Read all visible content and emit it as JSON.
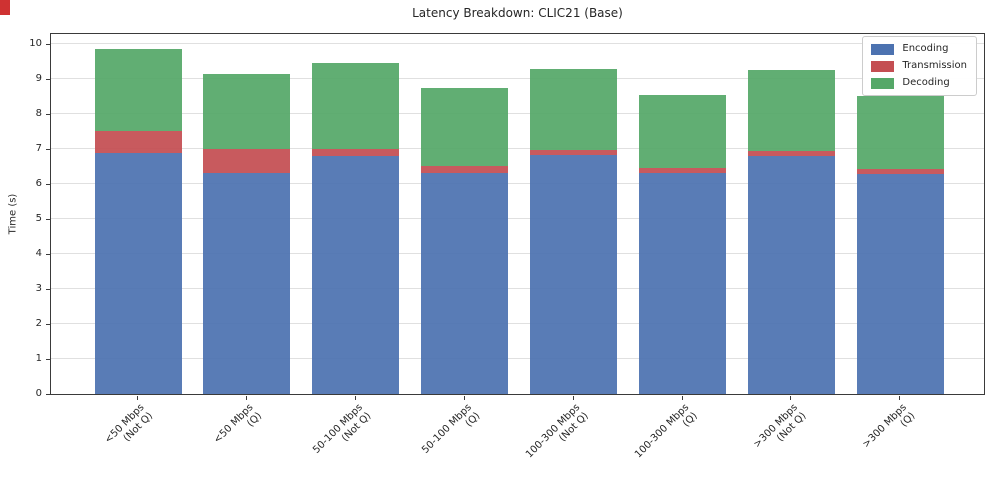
{
  "chart_data": {
    "type": "bar",
    "variant": "stacked",
    "title": "Latency Breakdown: CLIC21 (Base)",
    "xlabel": "",
    "ylabel": "Time (s)",
    "ylim": [
      0,
      10
    ],
    "yticks": [
      0,
      1,
      2,
      3,
      4,
      5,
      6,
      7,
      8,
      9,
      10
    ],
    "grid": "horizontal",
    "legend_position": "upper right",
    "categories": [
      {
        "label": "<50 Mbps",
        "sub": "(Not Q)"
      },
      {
        "label": "<50 Mbps",
        "sub": "(Q)"
      },
      {
        "label": "50-100 Mbps",
        "sub": "(Not Q)"
      },
      {
        "label": "50-100 Mbps",
        "sub": "(Q)"
      },
      {
        "label": "100-300 Mbps",
        "sub": "(Not Q)"
      },
      {
        "label": "100-300 Mbps",
        "sub": "(Q)"
      },
      {
        "label": ">300 Mbps",
        "sub": "(Not Q)"
      },
      {
        "label": ">300 Mbps",
        "sub": "(Q)"
      }
    ],
    "series": [
      {
        "name": "Encoding",
        "color": "#4C72B0",
        "values": [
          6.9,
          6.31,
          6.8,
          6.31,
          6.82,
          6.31,
          6.81,
          6.28
        ]
      },
      {
        "name": "Transmission",
        "color": "#C44E52",
        "values": [
          0.62,
          0.7,
          0.2,
          0.2,
          0.15,
          0.14,
          0.14,
          0.14
        ]
      },
      {
        "name": "Decoding",
        "color": "#55A868",
        "values": [
          2.34,
          2.12,
          2.45,
          2.22,
          2.31,
          2.09,
          2.31,
          2.1
        ]
      }
    ],
    "stack_totals": [
      9.86,
      9.13,
      9.45,
      8.73,
      9.28,
      8.54,
      9.26,
      8.52
    ]
  },
  "marker_color": "#cf3232"
}
